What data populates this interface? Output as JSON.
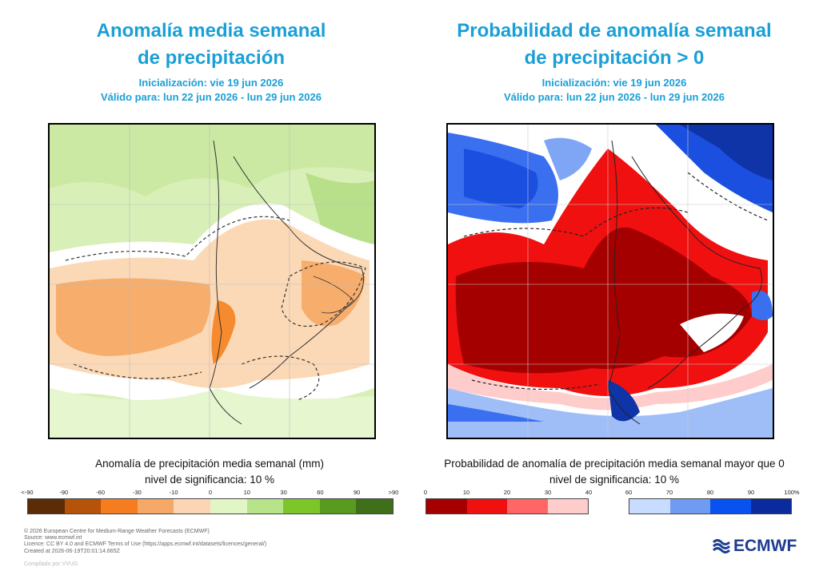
{
  "left": {
    "title_line1": "Anomalía media semanal",
    "title_line2": "de precipitación",
    "init": "Inicialización: vie 19 jun 2026",
    "valid": "Válido para: lun 22 jun 2026 - lun 29 jun 2026",
    "caption": "Anomalía de precipitación media semanal (mm)",
    "significance": "nivel de significancia: 10 %",
    "legend_ticks": [
      "<-90",
      "-90",
      "-60",
      "-30",
      "-10",
      "0",
      "10",
      "30",
      "60",
      "90",
      ">90"
    ],
    "legend_colors": [
      "#5c2c07",
      "#b45309",
      "#f57c1f",
      "#f5a868",
      "#fcd6b4",
      "#e2f5c4",
      "#b7e38a",
      "#7cc62a",
      "#599b20",
      "#3f6f18"
    ]
  },
  "right": {
    "title_line1": "Probabilidad de anomalía semanal",
    "title_line2": "de precipitación > 0",
    "init": "Inicialización: vie 19 jun 2026",
    "valid": "Válido para: lun 22 jun 2026 - lun 29 jun 2026",
    "caption": "Probabilidad de anomalía de precipitación media semanal mayor que 0",
    "significance": "nivel de significancia: 10 %",
    "legend_low_ticks": [
      "0",
      "10",
      "20",
      "30",
      "40"
    ],
    "legend_low_colors": [
      "#a50000",
      "#f01010",
      "#ff6666",
      "#ffcccc"
    ],
    "legend_high_ticks": [
      "60",
      "70",
      "80",
      "90",
      "100%"
    ],
    "legend_high_colors": [
      "#c8dcff",
      "#6f9cf0",
      "#0a52f0",
      "#0a2a9e"
    ]
  },
  "footer": {
    "line1": "© 2026 European Centre for Medium-Range Weather Forecasts (ECMWF)",
    "line2": "Source: www.ecmwf.int",
    "line3": "Licence: CC BY 4.0 and ECMWF Terms of Use (https://apps.ecmwf.int/datasets/licences/general/)",
    "line4": "Created at 2026-06-19T20:01:14.665Z",
    "compiled": "Compilado por VVUG"
  },
  "logo_text": "ECMWF"
}
